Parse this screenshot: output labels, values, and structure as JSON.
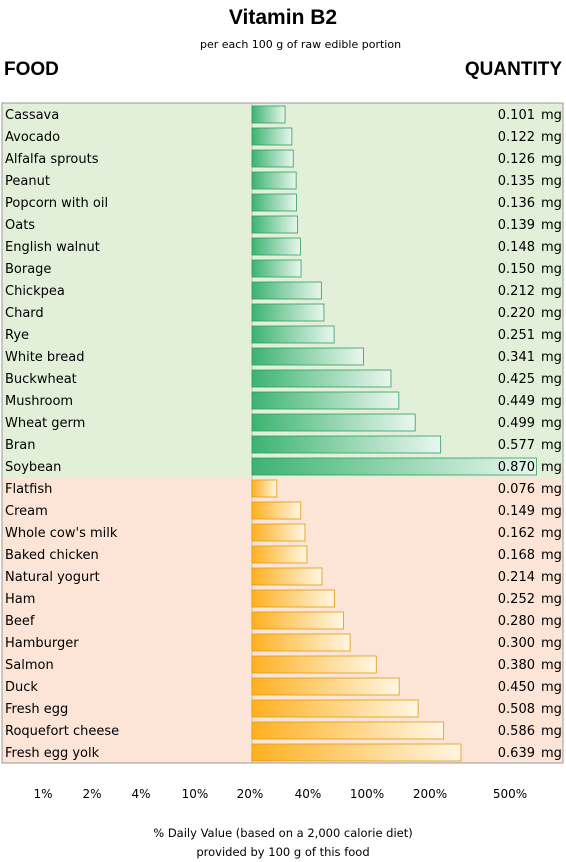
{
  "chart_data": {
    "type": "bar",
    "title": "Vitamin B2",
    "subtitle": "per each 100 g of raw edible portion",
    "category_header": "FOOD",
    "value_header": "QUANTITY",
    "unit": "mg",
    "x_scale": "log",
    "x_ticks": [
      "1%",
      "2%",
      "4%",
      "10%",
      "20%",
      "40%",
      "100%",
      "200%",
      "500%"
    ],
    "xlabel_line1": "% Daily Value (based on a 2,000 calorie diet)",
    "xlabel_line2": "provided by 100 g of this food",
    "series": [
      {
        "color": "#3cb371",
        "background": "#e2f0d9",
        "items": [
          {
            "food": "Cassava",
            "value": 0.101,
            "label": "0.101"
          },
          {
            "food": "Avocado",
            "value": 0.122,
            "label": "0.122"
          },
          {
            "food": "Alfalfa sprouts",
            "value": 0.126,
            "label": "0.126"
          },
          {
            "food": "Peanut",
            "value": 0.135,
            "label": "0.135"
          },
          {
            "food": "Popcorn with oil",
            "value": 0.136,
            "label": "0.136"
          },
          {
            "food": "Oats",
            "value": 0.139,
            "label": "0.139"
          },
          {
            "food": "English walnut",
            "value": 0.148,
            "label": "0.148"
          },
          {
            "food": "Borage",
            "value": 0.15,
            "label": "0.150"
          },
          {
            "food": "Chickpea",
            "value": 0.212,
            "label": "0.212"
          },
          {
            "food": "Chard",
            "value": 0.22,
            "label": "0.220"
          },
          {
            "food": "Rye",
            "value": 0.251,
            "label": "0.251"
          },
          {
            "food": "White bread",
            "value": 0.341,
            "label": "0.341"
          },
          {
            "food": "Buckwheat",
            "value": 0.425,
            "label": "0.425"
          },
          {
            "food": "Mushroom",
            "value": 0.449,
            "label": "0.449"
          },
          {
            "food": "Wheat germ",
            "value": 0.499,
            "label": "0.499"
          },
          {
            "food": "Bran",
            "value": 0.577,
            "label": "0.577"
          },
          {
            "food": "Soybean",
            "value": 0.87,
            "label": "0.870"
          }
        ]
      },
      {
        "color": "#ffb020",
        "background": "#fce4d6",
        "items": [
          {
            "food": "Flatfish",
            "value": 0.076,
            "label": "0.076"
          },
          {
            "food": "Cream",
            "value": 0.149,
            "label": "0.149"
          },
          {
            "food": "Whole cow's milk",
            "value": 0.162,
            "label": "0.162"
          },
          {
            "food": "Baked chicken",
            "value": 0.168,
            "label": "0.168"
          },
          {
            "food": "Natural yogurt",
            "value": 0.214,
            "label": "0.214"
          },
          {
            "food": "Ham",
            "value": 0.252,
            "label": "0.252"
          },
          {
            "food": "Beef",
            "value": 0.28,
            "label": "0.280"
          },
          {
            "food": "Hamburger",
            "value": 0.3,
            "label": "0.300"
          },
          {
            "food": "Salmon",
            "value": 0.38,
            "label": "0.380"
          },
          {
            "food": "Duck",
            "value": 0.45,
            "label": "0.450"
          },
          {
            "food": "Fresh egg",
            "value": 0.508,
            "label": "0.508"
          },
          {
            "food": "Roquefort cheese",
            "value": 0.586,
            "label": "0.586"
          },
          {
            "food": "Fresh egg yolk",
            "value": 0.639,
            "label": "0.639"
          }
        ]
      }
    ]
  }
}
